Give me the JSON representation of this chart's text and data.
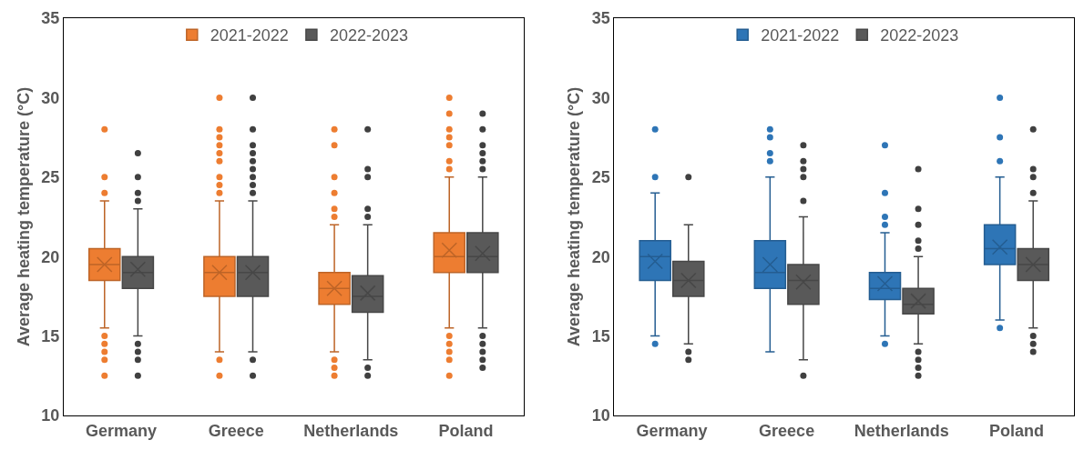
{
  "chart_data": [
    {
      "type": "box",
      "ylabel": "Average heating temperature (°C)",
      "categories": [
        "Germany",
        "Greece",
        "Netherlands",
        "Poland"
      ],
      "ylim": [
        10,
        35
      ],
      "yticks": [
        10,
        15,
        20,
        25,
        30,
        35
      ],
      "grid": false,
      "legend": "top",
      "series": [
        {
          "name": "2021-2022",
          "color": "#ed7d31",
          "boxes": [
            {
              "low": 15.5,
              "q1": 18.5,
              "median": 19.5,
              "q3": 20.5,
              "high": 23.5,
              "mean": 19.5,
              "outliers": [
                28,
                25,
                24,
                15,
                14.5,
                14,
                13.5,
                12.5
              ]
            },
            {
              "low": 14,
              "q1": 17.5,
              "median": 19,
              "q3": 20,
              "high": 23.5,
              "mean": 19,
              "outliers": [
                30,
                28,
                27.5,
                27,
                26.5,
                26,
                25,
                24.5,
                24,
                13.5,
                12.5
              ]
            },
            {
              "low": 14,
              "q1": 17,
              "median": 18,
              "q3": 19,
              "high": 22,
              "mean": 18,
              "outliers": [
                28,
                27,
                25,
                24,
                23,
                22.5,
                13.5,
                13,
                12.5
              ]
            },
            {
              "low": 15.5,
              "q1": 19,
              "median": 20,
              "q3": 21.5,
              "high": 25,
              "mean": 20.4,
              "outliers": [
                30,
                29,
                28,
                27.5,
                27,
                26,
                25.5,
                15,
                14.5,
                14,
                13.5,
                12.5
              ]
            }
          ]
        },
        {
          "name": "2022-2023",
          "color": "#595959",
          "boxes": [
            {
              "low": 15,
              "q1": 18,
              "median": 19,
              "q3": 20,
              "high": 23,
              "mean": 19.2,
              "outliers": [
                26.5,
                25,
                24,
                23.5,
                14.5,
                14,
                13.5,
                12.5
              ]
            },
            {
              "low": 14,
              "q1": 17.5,
              "median": 19,
              "q3": 20,
              "high": 23.5,
              "mean": 19,
              "outliers": [
                30,
                28,
                27,
                26.5,
                26,
                25.5,
                25,
                24.5,
                24,
                13.5,
                12.5
              ]
            },
            {
              "low": 13.5,
              "q1": 16.5,
              "median": 17.5,
              "q3": 18.8,
              "high": 22,
              "mean": 17.7,
              "outliers": [
                28,
                25.5,
                25,
                23,
                22.5,
                13,
                12.5
              ]
            },
            {
              "low": 15.5,
              "q1": 19,
              "median": 20,
              "q3": 21.5,
              "high": 25,
              "mean": 20.2,
              "outliers": [
                29,
                28,
                27,
                26.5,
                26,
                25.5,
                15,
                14.5,
                14,
                13.5,
                13
              ]
            }
          ]
        }
      ]
    },
    {
      "type": "box",
      "ylabel": "Average heating temperature (°C)",
      "categories": [
        "Germany",
        "Greece",
        "Netherlands",
        "Poland"
      ],
      "ylim": [
        10,
        35
      ],
      "yticks": [
        10,
        15,
        20,
        25,
        30,
        35
      ],
      "grid": false,
      "legend": "top",
      "series": [
        {
          "name": "2021-2022",
          "color": "#2e75b6",
          "boxes": [
            {
              "low": 15,
              "q1": 18.5,
              "median": 20,
              "q3": 21,
              "high": 24,
              "mean": 19.7,
              "outliers": [
                28,
                25,
                14.5
              ]
            },
            {
              "low": 14,
              "q1": 18,
              "median": 19,
              "q3": 21,
              "high": 25,
              "mean": 19.5,
              "outliers": [
                28,
                27.5,
                26.5,
                26
              ]
            },
            {
              "low": 15,
              "q1": 17.3,
              "median": 18,
              "q3": 19,
              "high": 21.5,
              "mean": 18.3,
              "outliers": [
                27,
                24,
                22.5,
                22,
                14.5
              ]
            },
            {
              "low": 16,
              "q1": 19.5,
              "median": 20.5,
              "q3": 22,
              "high": 25,
              "mean": 20.6,
              "outliers": [
                30,
                27.5,
                26,
                15.5
              ]
            }
          ]
        },
        {
          "name": "2022-2023",
          "color": "#595959",
          "boxes": [
            {
              "low": 14.5,
              "q1": 17.5,
              "median": 18.5,
              "q3": 19.7,
              "high": 22,
              "mean": 18.5,
              "outliers": [
                25,
                14,
                13.5
              ]
            },
            {
              "low": 13.5,
              "q1": 17,
              "median": 18.5,
              "q3": 19.5,
              "high": 22.5,
              "mean": 18.4,
              "outliers": [
                27,
                26,
                25.5,
                25,
                23.5,
                12.5
              ]
            },
            {
              "low": 14.5,
              "q1": 16.4,
              "median": 17,
              "q3": 18,
              "high": 20,
              "mean": 17.2,
              "outliers": [
                25.5,
                23,
                22,
                21,
                20.5,
                14,
                13.5,
                13,
                12.5
              ]
            },
            {
              "low": 15.5,
              "q1": 18.5,
              "median": 19.5,
              "q3": 20.5,
              "high": 23.5,
              "mean": 19.5,
              "outliers": [
                28,
                25.5,
                25,
                24,
                15,
                14.5,
                14
              ]
            }
          ]
        }
      ]
    }
  ]
}
